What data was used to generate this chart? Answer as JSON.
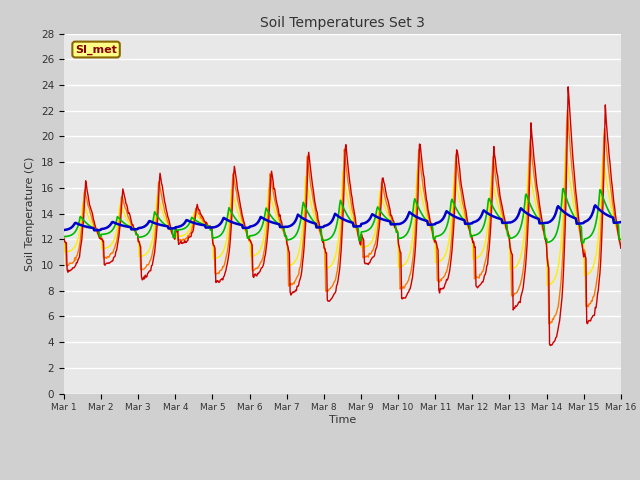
{
  "title": "Soil Temperatures Set 3",
  "xlabel": "Time",
  "ylabel": "Soil Temperature (C)",
  "ylim": [
    0,
    28
  ],
  "yticks": [
    0,
    2,
    4,
    6,
    8,
    10,
    12,
    14,
    16,
    18,
    20,
    22,
    24,
    26,
    28
  ],
  "bg_color": "#e8e8e8",
  "fig_bg_color": "#d0d0d0",
  "series": {
    "TC3_2Cm": {
      "color": "#cc0000",
      "lw": 1.0
    },
    "TC3_4Cm": {
      "color": "#ff7700",
      "lw": 1.0
    },
    "TC3_8Cm": {
      "color": "#ffee00",
      "lw": 1.0
    },
    "TC3_16Cm": {
      "color": "#00bb00",
      "lw": 1.2
    },
    "TC3_32Cm": {
      "color": "#0000cc",
      "lw": 1.8
    }
  },
  "legend_colors": {
    "TC3_2Cm": "#cc0000",
    "TC3_4Cm": "#ff7700",
    "TC3_8Cm": "#ffee00",
    "TC3_16Cm": "#00bb00",
    "TC3_32Cm": "#0000cc"
  },
  "annotation_box": {
    "text": "SI_met",
    "bg": "#ffff88",
    "border": "#886600",
    "text_color": "#880000"
  },
  "x_tick_labels": [
    "Mar 1",
    "Mar 2",
    "Mar 3",
    "Mar 4",
    "Mar 5",
    "Mar 6",
    "Mar 7",
    "Mar 8",
    "Mar 9",
    "Mar 10",
    "Mar 11",
    "Mar 12",
    "Mar 13",
    "Mar 14",
    "Mar 15",
    "Mar 16"
  ],
  "num_points": 720,
  "days": 15
}
